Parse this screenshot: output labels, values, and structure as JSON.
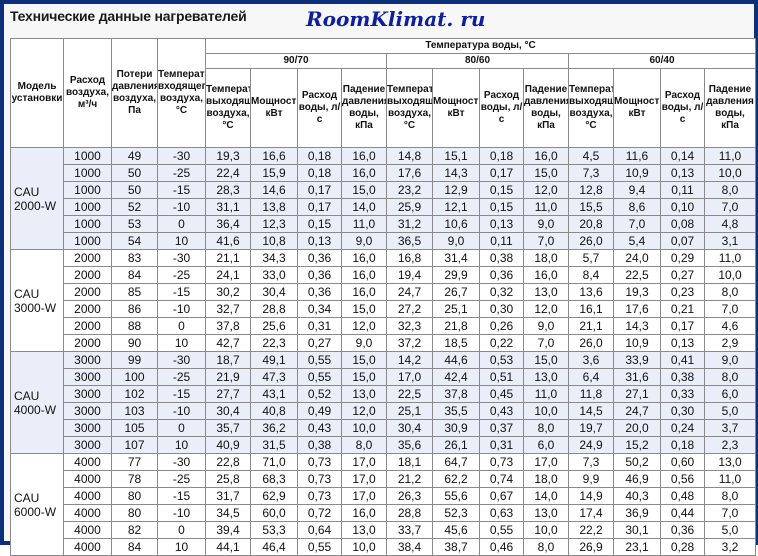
{
  "page": {
    "title": "Технические данные нагревателей",
    "brand": "RoomKlimat. ru"
  },
  "table": {
    "headers": {
      "model": "Модель установки",
      "airflow": "Расход воздуха, м³/ч",
      "pressure_loss": "Потери давления воздуха, Па",
      "inlet_temp": "Температура входящего воздуха, °C",
      "water_temp": "Температура воды, °C",
      "regimes": [
        "90/70",
        "80/60",
        "60/40"
      ],
      "subcols": [
        "Температура выходящего воздуха, °C",
        "Мощность, кВт",
        "Расход воды, л/с",
        "Падение давления воды, кПа"
      ]
    },
    "groups": [
      {
        "model": "CAU 2000-W",
        "rows": [
          [
            "1000",
            "49",
            "-30",
            "19,3",
            "16,6",
            "0,18",
            "16,0",
            "14,8",
            "15,1",
            "0,18",
            "16,0",
            "4,5",
            "11,6",
            "0,14",
            "11,0"
          ],
          [
            "1000",
            "50",
            "-25",
            "22,4",
            "15,9",
            "0,18",
            "16,0",
            "17,6",
            "14,3",
            "0,17",
            "15,0",
            "7,3",
            "10,9",
            "0,13",
            "10,0"
          ],
          [
            "1000",
            "50",
            "-15",
            "28,3",
            "14,6",
            "0,17",
            "15,0",
            "23,2",
            "12,9",
            "0,15",
            "12,0",
            "12,8",
            "9,4",
            "0,11",
            "8,0"
          ],
          [
            "1000",
            "52",
            "-10",
            "31,1",
            "13,8",
            "0,17",
            "14,0",
            "25,9",
            "12,1",
            "0,15",
            "11,0",
            "15,5",
            "8,6",
            "0,10",
            "7,0"
          ],
          [
            "1000",
            "53",
            "0",
            "36,4",
            "12,3",
            "0,15",
            "11,0",
            "31,2",
            "10,6",
            "0,13",
            "9,0",
            "20,8",
            "7,0",
            "0,08",
            "4,8"
          ],
          [
            "1000",
            "54",
            "10",
            "41,6",
            "10,8",
            "0,13",
            "9,0",
            "36,5",
            "9,0",
            "0,11",
            "7,0",
            "26,0",
            "5,4",
            "0,07",
            "3,1"
          ]
        ]
      },
      {
        "model": "CAU 3000-W",
        "rows": [
          [
            "2000",
            "83",
            "-30",
            "21,1",
            "34,3",
            "0,36",
            "16,0",
            "16,8",
            "31,4",
            "0,38",
            "18,0",
            "5,7",
            "24,0",
            "0,29",
            "11,0"
          ],
          [
            "2000",
            "84",
            "-25",
            "24,1",
            "33,0",
            "0,36",
            "16,0",
            "19,4",
            "29,9",
            "0,36",
            "16,0",
            "8,4",
            "22,5",
            "0,27",
            "10,0"
          ],
          [
            "2000",
            "85",
            "-15",
            "30,2",
            "30,4",
            "0,36",
            "16,0",
            "24,7",
            "26,7",
            "0,32",
            "13,0",
            "13,6",
            "19,3",
            "0,23",
            "8,0"
          ],
          [
            "2000",
            "86",
            "-10",
            "32,7",
            "28,8",
            "0,34",
            "15,0",
            "27,2",
            "25,1",
            "0,30",
            "12,0",
            "16,1",
            "17,6",
            "0,21",
            "7,0"
          ],
          [
            "2000",
            "88",
            "0",
            "37,8",
            "25,6",
            "0,31",
            "12,0",
            "32,3",
            "21,8",
            "0,26",
            "9,0",
            "21,1",
            "14,3",
            "0,17",
            "4,6"
          ],
          [
            "2000",
            "90",
            "10",
            "42,7",
            "22,3",
            "0,27",
            "9,0",
            "37,2",
            "18,5",
            "0,22",
            "7,0",
            "26,0",
            "10,9",
            "0,13",
            "2,9"
          ]
        ]
      },
      {
        "model": "CAU 4000-W",
        "rows": [
          [
            "3000",
            "99",
            "-30",
            "18,7",
            "49,1",
            "0,55",
            "15,0",
            "14,2",
            "44,6",
            "0,53",
            "15,0",
            "3,6",
            "33,9",
            "0,41",
            "9,0"
          ],
          [
            "3000",
            "100",
            "-25",
            "21,9",
            "47,3",
            "0,55",
            "15,0",
            "17,0",
            "42,4",
            "0,51",
            "13,0",
            "6,4",
            "31,6",
            "0,38",
            "8,0"
          ],
          [
            "3000",
            "102",
            "-15",
            "27,7",
            "43,1",
            "0,52",
            "13,0",
            "22,5",
            "37,8",
            "0,45",
            "11,0",
            "11,8",
            "27,1",
            "0,33",
            "6,0"
          ],
          [
            "3000",
            "103",
            "-10",
            "30,4",
            "40,8",
            "0,49",
            "12,0",
            "25,1",
            "35,5",
            "0,43",
            "10,0",
            "14,5",
            "24,7",
            "0,30",
            "5,0"
          ],
          [
            "3000",
            "105",
            "0",
            "35,7",
            "36,2",
            "0,43",
            "10,0",
            "30,4",
            "30,9",
            "0,37",
            "8,0",
            "19,7",
            "20,0",
            "0,24",
            "3,7"
          ],
          [
            "3000",
            "107",
            "10",
            "40,9",
            "31,5",
            "0,38",
            "8,0",
            "35,6",
            "26,1",
            "0,31",
            "6,0",
            "24,9",
            "15,2",
            "0,18",
            "2,3"
          ]
        ]
      },
      {
        "model": "CAU 6000-W",
        "rows": [
          [
            "4000",
            "77",
            "-30",
            "22,8",
            "71,0",
            "0,73",
            "17,0",
            "18,1",
            "64,7",
            "0,73",
            "17,0",
            "7,3",
            "50,2",
            "0,60",
            "13,0"
          ],
          [
            "4000",
            "78",
            "-25",
            "25,8",
            "68,3",
            "0,73",
            "17,0",
            "21,2",
            "62,2",
            "0,74",
            "18,0",
            "9,9",
            "46,9",
            "0,56",
            "11,0"
          ],
          [
            "4000",
            "80",
            "-15",
            "31,7",
            "62,9",
            "0,73",
            "17,0",
            "26,3",
            "55,6",
            "0,67",
            "14,0",
            "14,9",
            "40,3",
            "0,48",
            "8,0"
          ],
          [
            "4000",
            "80",
            "-10",
            "34,5",
            "60,0",
            "0,72",
            "16,0",
            "28,8",
            "52,3",
            "0,63",
            "13,0",
            "17,4",
            "36,9",
            "0,44",
            "7,0"
          ],
          [
            "4000",
            "82",
            "0",
            "39,4",
            "53,3",
            "0,64",
            "13,0",
            "33,7",
            "45,6",
            "0,55",
            "10,0",
            "22,2",
            "30,1",
            "0,36",
            "5,0"
          ],
          [
            "4000",
            "84",
            "10",
            "44,1",
            "46,4",
            "0,55",
            "10,0",
            "38,4",
            "38,7",
            "0,46",
            "8,0",
            "26,9",
            "23,1",
            "0,28",
            "3,2"
          ]
        ]
      }
    ]
  },
  "colors": {
    "frame": "#0b2f7a",
    "brand": "#0d1f9e",
    "shade": "#e9eef8"
  }
}
